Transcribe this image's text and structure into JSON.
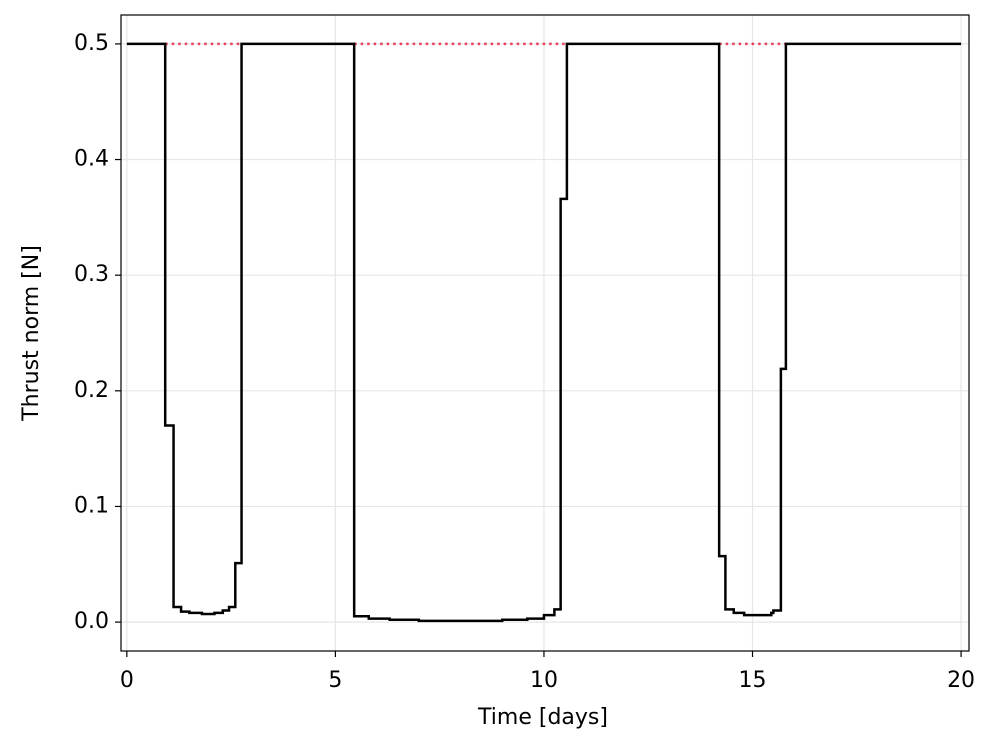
{
  "chart_data": {
    "type": "line",
    "step": "post",
    "xlabel": "Time [days]",
    "ylabel": "Thrust norm [N]",
    "xlim": [
      -0.14,
      20.19
    ],
    "ylim": [
      -0.025,
      0.525
    ],
    "xticks": [
      0,
      5,
      10,
      15,
      20
    ],
    "yticks": [
      {
        "value": 0,
        "label": "0.0"
      },
      0.1,
      0.2,
      0.3,
      0.4,
      0.5
    ],
    "grid": true,
    "series": [
      {
        "color": "#e8405a",
        "dash": "dotted",
        "x": [
          0.92,
          2.75,
          null,
          5.45,
          10.55,
          null,
          14.2,
          15.8
        ],
        "values": [
          0.5,
          0.5,
          null,
          0.5,
          0.5,
          null,
          0.5,
          0.5
        ]
      },
      {
        "color": "#000000",
        "x": [
          0,
          0.92,
          1.12,
          1.3,
          1.5,
          1.8,
          2.1,
          2.3,
          2.45,
          2.6,
          2.75,
          5.45,
          5.8,
          6.3,
          7.0,
          8.0,
          9.0,
          9.6,
          10.0,
          10.25,
          10.4,
          10.55,
          14.2,
          14.35,
          14.55,
          14.8,
          15.2,
          15.45,
          15.5,
          15.68,
          15.8,
          20
        ],
        "values": [
          0.5,
          0.17,
          0.013,
          0.009,
          0.008,
          0.007,
          0.008,
          0.01,
          0.013,
          0.051,
          0.5,
          0.005,
          0.003,
          0.002,
          0.001,
          0.001,
          0.002,
          0.003,
          0.006,
          0.011,
          0.366,
          0.5,
          0.057,
          0.011,
          0.008,
          0.006,
          0.006,
          0.008,
          0.01,
          0.219,
          0.5,
          0.5
        ]
      }
    ]
  }
}
